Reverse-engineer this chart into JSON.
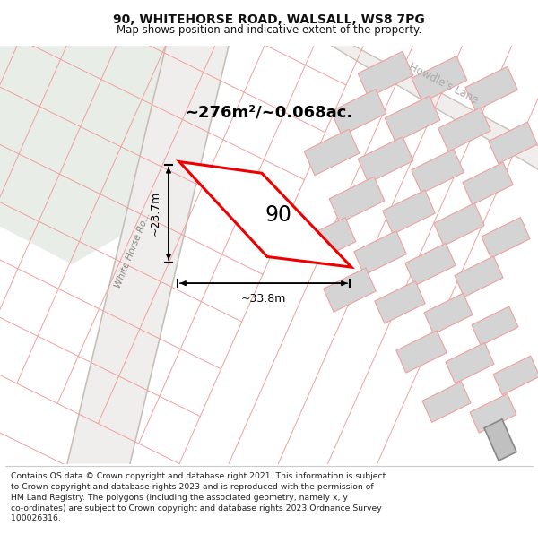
{
  "title": "90, WHITEHORSE ROAD, WALSALL, WS8 7PG",
  "subtitle": "Map shows position and indicative extent of the property.",
  "footer_line1": "Contains OS data © Crown copyright and database right 2021. This information is subject",
  "footer_line2": "to Crown copyright and database rights 2023 and is reproduced with the permission of",
  "footer_line3": "HM Land Registry. The polygons (including the associated geometry, namely x, y",
  "footer_line4": "co-ordinates) are subject to Crown copyright and database rights 2023 Ordnance Survey",
  "footer_line5": "100026316.",
  "area_label": "~276m²/~0.068ac.",
  "plot_number": "90",
  "dim_width": "~33.8m",
  "dim_height": "~23.7m",
  "road_label": "White Horse Ro...",
  "lane_label": "Howdle's Lane",
  "map_bg": "#f7f4f0",
  "green_color": "#e8ede8",
  "road_fill": "#f0eeec",
  "building_fill": "#d4d4d4",
  "building_edge": "#f0a0a0",
  "parcel_line": "#f0a0a0",
  "road_edge": "#c8c0b8",
  "boundary_color": "#ee0000",
  "title_color": "#111111"
}
